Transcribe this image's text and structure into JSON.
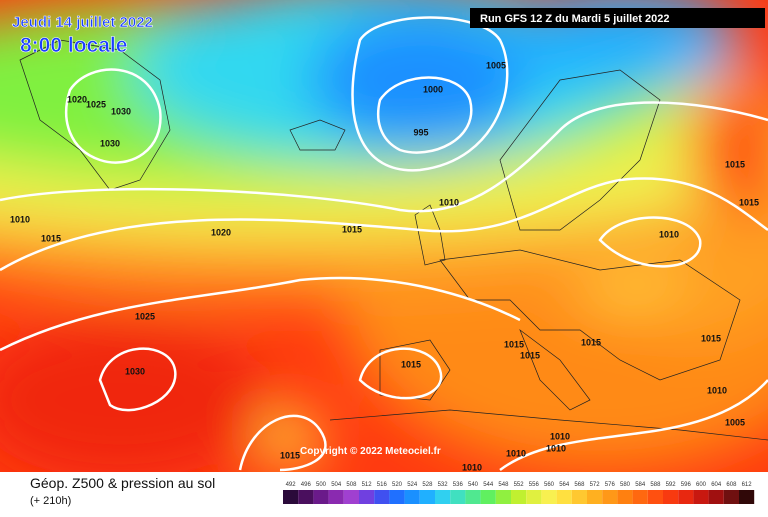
{
  "header": {
    "date": "Jeudi 14 juillet 2022",
    "time": "8:00 locale",
    "run": "Run GFS 12 Z du Mardi 5 juillet 2022"
  },
  "copyright": "Copyright © 2022 Meteociel.fr",
  "footer": {
    "title": "Géop. Z500 & pression au sol",
    "lead": "(+ 210h)"
  },
  "isobar_labels": [
    "1005",
    "1000",
    "995",
    "1020",
    "1025",
    "1030",
    "1030",
    "1010",
    "1010",
    "1015",
    "1020",
    "1015",
    "1010",
    "1015",
    "1015",
    "1025",
    "1030",
    "1015",
    "1015",
    "1015",
    "1015",
    "1015",
    "1010",
    "1005",
    "1010",
    "1010",
    "1010",
    "1010",
    "1015"
  ],
  "scale": {
    "labels": [
      492,
      496,
      500,
      504,
      508,
      512,
      516,
      520,
      524,
      528,
      532,
      536,
      540,
      544,
      548,
      552,
      556,
      560,
      564,
      568,
      572,
      576,
      580,
      584,
      588,
      592,
      596,
      600,
      604,
      608,
      612
    ],
    "colors": [
      "#2a0a3a",
      "#4a0f5e",
      "#6a1a8a",
      "#8a2ab0",
      "#a040d0",
      "#7040e0",
      "#4050f0",
      "#2070ff",
      "#1a90ff",
      "#20b0ff",
      "#30d0f0",
      "#40e0c0",
      "#50e890",
      "#60f060",
      "#90f040",
      "#c0f030",
      "#e0f040",
      "#f8f050",
      "#ffe040",
      "#ffc830",
      "#ffb020",
      "#ff9818",
      "#ff8010",
      "#ff6810",
      "#ff5010",
      "#f83a10",
      "#e82810",
      "#c81810",
      "#a01010",
      "#701010",
      "#300808"
    ]
  }
}
